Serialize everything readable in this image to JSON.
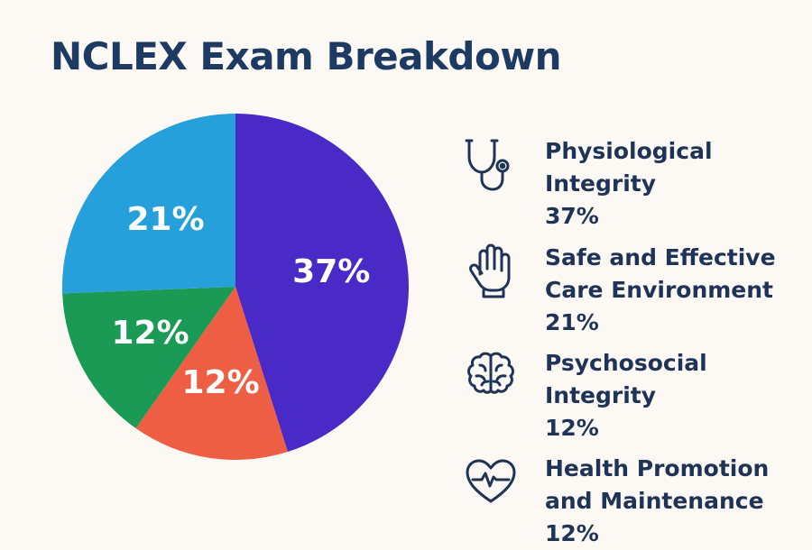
{
  "colors": {
    "background": "#fcf9f4",
    "title": "#1d3a63",
    "text": "#1f3357",
    "label_text": "#ffffff"
  },
  "chart_data": {
    "type": "pie",
    "title": "NCLEX Exam Breakdown",
    "slices": [
      {
        "label": "Physiological Integrity",
        "value": 37,
        "display": "37%",
        "color": "#4a2ac6",
        "icon": "stethoscope-icon"
      },
      {
        "label": "Health Promotion and Maintenance",
        "value": 12,
        "display": "12%",
        "color": "#ee5e45",
        "icon": "heart-pulse-icon"
      },
      {
        "label": "Psychosocial Integrity",
        "value": 12,
        "display": "12%",
        "color": "#1b9a56",
        "icon": "brain-icon"
      },
      {
        "label": "Safe and Effective Care Environment",
        "value": 21,
        "display": "21%",
        "color": "#26a0da",
        "icon": "glove-hand-icon"
      }
    ],
    "legend": {
      "placement": "right",
      "items": [
        {
          "line1": "Physiological",
          "line2": "Integrity",
          "value": "37%",
          "icon": "stethoscope-icon"
        },
        {
          "line1": "Safe and Effective",
          "line2": "Care Environment",
          "value": "21%",
          "icon": "glove-hand-icon"
        },
        {
          "line1": "Psychosocial",
          "line2": "Integrity",
          "value": "12%",
          "icon": "brain-icon"
        },
        {
          "line1": "Health Promotion",
          "line2": "and Maintenance",
          "value": "12%",
          "icon": "heart-pulse-icon"
        }
      ]
    }
  }
}
